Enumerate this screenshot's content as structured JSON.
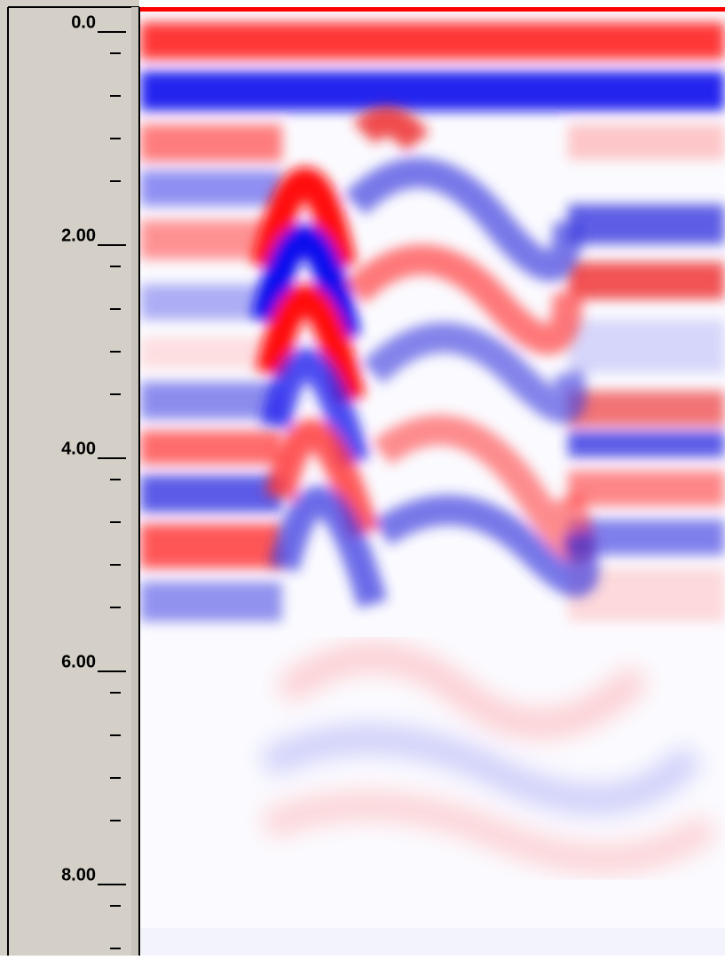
{
  "depth_axis": {
    "labels": [
      "0.0",
      "2.00",
      "4.00",
      "6.00",
      "8.00"
    ]
  }
}
